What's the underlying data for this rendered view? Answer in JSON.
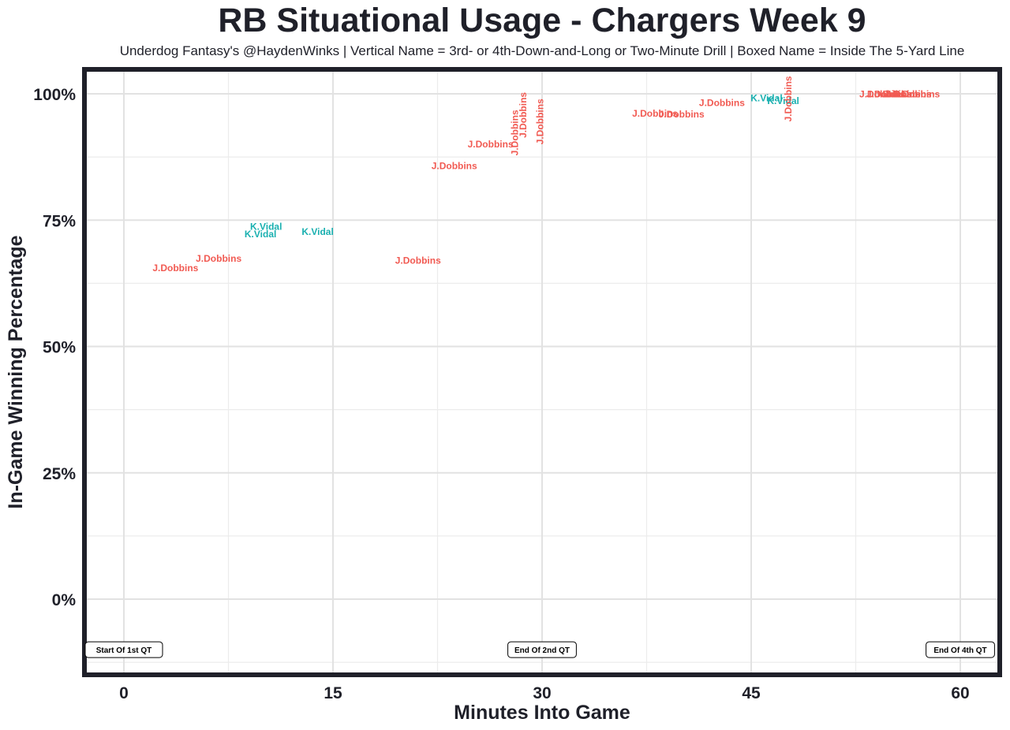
{
  "chart_data": {
    "type": "scatter",
    "title": "RB Situational Usage - Chargers Week 9",
    "subtitle": "Underdog Fantasy's @HaydenWinks | Vertical Name = 3rd- or 4th-Down-and-Long or Two-Minute Drill | Boxed Name = Inside The 5-Yard Line",
    "xlabel": "Minutes Into Game",
    "ylabel": "In-Game Winning Percentage",
    "xlim": [
      -3,
      63
    ],
    "ylim": [
      -15,
      105
    ],
    "xticks": [
      0,
      15,
      30,
      45,
      60
    ],
    "xtick_labels": [
      "0",
      "15",
      "30",
      "45",
      "60"
    ],
    "yticks": [
      0,
      25,
      50,
      75,
      100
    ],
    "ytick_labels": [
      "0%",
      "25%",
      "50%",
      "75%",
      "100%"
    ],
    "grid": true,
    "colors": {
      "J.Dobbins": "#f15a52",
      "K.Vidal": "#1ab0b0"
    },
    "points": [
      {
        "player": "J.Dobbins",
        "x": 3.7,
        "y": 65.4,
        "vertical": false
      },
      {
        "player": "J.Dobbins",
        "x": 6.8,
        "y": 67.3,
        "vertical": false
      },
      {
        "player": "K.Vidal",
        "x": 10.2,
        "y": 73.6,
        "vertical": false
      },
      {
        "player": "K.Vidal",
        "x": 9.8,
        "y": 72.1,
        "vertical": false
      },
      {
        "player": "K.Vidal",
        "x": 13.9,
        "y": 72.6,
        "vertical": false
      },
      {
        "player": "J.Dobbins",
        "x": 21.1,
        "y": 66.9,
        "vertical": false
      },
      {
        "player": "J.Dobbins",
        "x": 23.7,
        "y": 85.6,
        "vertical": false
      },
      {
        "player": "J.Dobbins",
        "x": 26.3,
        "y": 89.9,
        "vertical": false
      },
      {
        "player": "J.Dobbins",
        "x": 28.1,
        "y": 92.3,
        "vertical": true
      },
      {
        "player": "J.Dobbins",
        "x": 28.7,
        "y": 95.8,
        "vertical": true
      },
      {
        "player": "J.Dobbins",
        "x": 29.9,
        "y": 94.5,
        "vertical": true
      },
      {
        "player": "J.Dobbins",
        "x": 38.1,
        "y": 96.0,
        "vertical": false
      },
      {
        "player": "J.Dobbins",
        "x": 40.0,
        "y": 95.8,
        "vertical": false
      },
      {
        "player": "J.Dobbins",
        "x": 42.9,
        "y": 98.1,
        "vertical": false
      },
      {
        "player": "K.Vidal",
        "x": 46.1,
        "y": 99.0,
        "vertical": false
      },
      {
        "player": "K.Vidal",
        "x": 47.3,
        "y": 98.5,
        "vertical": false
      },
      {
        "player": "J.Dobbins",
        "x": 47.7,
        "y": 99.0,
        "vertical": true
      },
      {
        "player": "J.Dobbins",
        "x": 54.4,
        "y": 99.8,
        "vertical": false
      },
      {
        "player": "J.Dobbins",
        "x": 54.9,
        "y": 99.8,
        "vertical": false
      },
      {
        "player": "J.Dobbins",
        "x": 55.5,
        "y": 99.8,
        "vertical": false
      },
      {
        "player": "J.Dobbins",
        "x": 56.3,
        "y": 99.8,
        "vertical": false
      },
      {
        "player": "J.Dobbins",
        "x": 56.9,
        "y": 99.8,
        "vertical": false
      }
    ],
    "annotations": [
      {
        "text": "Start Of 1st QT",
        "x": 0,
        "y": -10
      },
      {
        "text": "End Of 2nd QT",
        "x": 30,
        "y": -10
      },
      {
        "text": "End Of 4th QT",
        "x": 60,
        "y": -10
      }
    ]
  }
}
